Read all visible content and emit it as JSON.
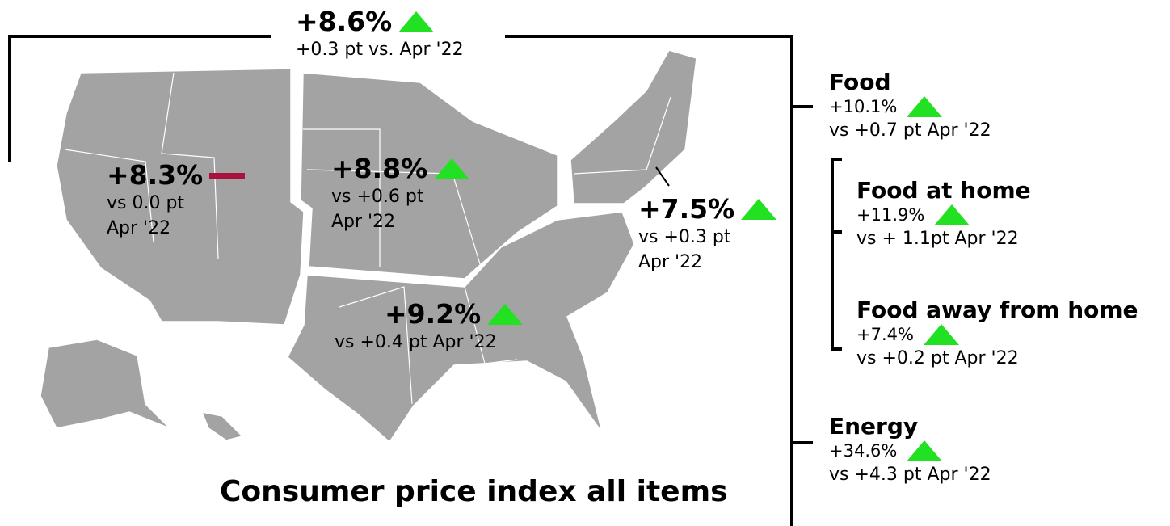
{
  "title": "Consumer price index all items",
  "national": {
    "change": "+8.6%",
    "detail": "+0.3 pt vs. Apr '22",
    "trend": "up"
  },
  "regions": [
    {
      "change": "+8.3%",
      "detail": [
        "vs 0.0 pt",
        "Apr '22"
      ],
      "trend": "flat"
    },
    {
      "change": "+8.8%",
      "detail": [
        "vs +0.6 pt",
        "Apr '22"
      ],
      "trend": "up"
    },
    {
      "change": "+7.5%",
      "detail": [
        "vs +0.3 pt",
        "Apr '22"
      ],
      "trend": "up"
    },
    {
      "change": "+9.2%",
      "detail": [
        "vs +0.4 pt Apr '22"
      ],
      "trend": "up"
    }
  ],
  "categories": [
    {
      "name": "Food",
      "change": "+10.1%",
      "detail": "vs +0.7 pt Apr '22",
      "trend": "up"
    },
    {
      "name": "Food at home",
      "change": "+11.9%",
      "detail": "vs + 1.1pt Apr '22",
      "trend": "up"
    },
    {
      "name": "Food away from home",
      "change": "+7.4%",
      "detail": "vs +0.2 pt Apr '22",
      "trend": "up"
    },
    {
      "name": "Energy",
      "change": "+34.6%",
      "detail": "vs +4.3 pt Apr '22",
      "trend": "up"
    }
  ]
}
